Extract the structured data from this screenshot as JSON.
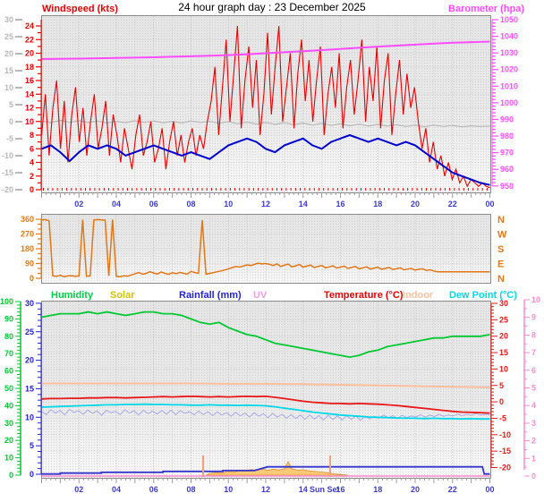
{
  "title": "24 hour graph day : 23 December 2025",
  "top_left_label": "Windspeed (kts)",
  "top_right_label": "Barometer (hpa)",
  "legend": [
    {
      "label": "Humidity",
      "color": "#00cc44"
    },
    {
      "label": "Solar",
      "color": "#d2c400"
    },
    {
      "label": "Rainfall (mm)",
      "color": "#2222dd"
    },
    {
      "label": "UV",
      "color": "#ee99ee"
    },
    {
      "label": "Temperature (°C)",
      "color": "#e80000"
    },
    {
      "label": "Indoor",
      "color": "#f8c0a0"
    },
    {
      "label": "Dew Point (°C)",
      "color": "#00d8e8"
    }
  ],
  "x_axis": {
    "hour_labels": [
      "02",
      "04",
      "06",
      "08",
      "10",
      "12",
      "14",
      "16",
      "18",
      "20",
      "22",
      "00"
    ],
    "sun_label": "Sun Set"
  },
  "chart_data": [
    {
      "id": "wind-barometer",
      "type": "line",
      "title_left": "Windspeed (kts)",
      "title_right": "Barometer (hpa)",
      "axes": {
        "gray_left": {
          "range": [
            -20,
            30
          ],
          "ticks": [
            30,
            25,
            20,
            15,
            10,
            5,
            0,
            -5,
            -10,
            -15,
            -20
          ],
          "color": "#b8b8b8"
        },
        "red_left": {
          "range": [
            0,
            24
          ],
          "ticks": [
            24,
            22,
            20,
            18,
            16,
            14,
            12,
            10,
            8,
            6,
            4,
            2,
            0
          ],
          "color": "#e80000"
        },
        "magenta_right": {
          "range": [
            950,
            1050
          ],
          "ticks": [
            1050,
            1040,
            1030,
            1020,
            1010,
            1000,
            990,
            980,
            970,
            960,
            950
          ],
          "color": "#ff4cff"
        }
      },
      "series": [
        {
          "name": "wind_gust_kts",
          "color": "#e80000",
          "axis": "red_left",
          "values": [
            8,
            14,
            5,
            12,
            16,
            6,
            13,
            4,
            11,
            15,
            7,
            12,
            5,
            10,
            14,
            6,
            9,
            13,
            5,
            11,
            8,
            4,
            9,
            6,
            3,
            8,
            11,
            5,
            7,
            10,
            4,
            6,
            9,
            3,
            7,
            10,
            5,
            8,
            4,
            7,
            9,
            5,
            8,
            6,
            10,
            13,
            18,
            8,
            15,
            22,
            10,
            17,
            24,
            9,
            16,
            21,
            12,
            19,
            8,
            14,
            23,
            11,
            18,
            24,
            10,
            15,
            20,
            9,
            17,
            22,
            13,
            19,
            10,
            16,
            21,
            8,
            14,
            18,
            12,
            20,
            9,
            15,
            19,
            11,
            16,
            22,
            10,
            18,
            13,
            21,
            9,
            16,
            20,
            8,
            14,
            19,
            11,
            17,
            12,
            15,
            10,
            6,
            9,
            4,
            7,
            3,
            5,
            2,
            4,
            1.5,
            3,
            1,
            2,
            0.5,
            1.5,
            1,
            0.5,
            1,
            0.5,
            0.3
          ]
        },
        {
          "name": "wind_average_kts",
          "color": "#0000cc",
          "axis": "red_left",
          "values": [
            6,
            6.5,
            5.5,
            4.2,
            5.5,
            6.5,
            6,
            6.5,
            6,
            5,
            5.5,
            6,
            6.5,
            6,
            5.5,
            5,
            5.5,
            5,
            4.5,
            5.5,
            6.5,
            7,
            7.5,
            7,
            6,
            5.5,
            6.5,
            7,
            7.5,
            6.5,
            6,
            7,
            7.5,
            8,
            7.5,
            7,
            7.5,
            7,
            6.5,
            7,
            6.5,
            5.5,
            4.5,
            3.5,
            2.5,
            2,
            1.5,
            1,
            0.7
          ]
        },
        {
          "name": "gray_temperature_c",
          "color": "#b8b8b8",
          "axis": "gray_left",
          "values": [
            0.2,
            -0.3,
            0.4,
            -0.2,
            0.3,
            -0.3,
            0.2,
            -0.4,
            0.1,
            -0.3,
            0.3,
            -0.2,
            0.2,
            -0.3,
            0.1,
            -0.4,
            0.2,
            -0.2,
            0.1,
            -0.5,
            0,
            -0.6,
            -0.1,
            -0.7,
            -0.2,
            -0.8,
            -0.3,
            -0.9,
            -0.4,
            -1.0,
            -0.5,
            -1.1,
            -0.6,
            -1.2,
            -0.7,
            -1.3,
            -0.8,
            -1.3,
            -0.9,
            -1.4,
            -1.0,
            -1.5,
            -1.0,
            -1.4,
            -1.1,
            -1.5,
            -1.2,
            -1.4,
            -1.3
          ]
        },
        {
          "name": "barometer_hpa",
          "color": "#ff4cff",
          "axis": "magenta_right",
          "values": [
            1026.3,
            1026.5,
            1026.6,
            1026.8,
            1027.0,
            1027.2,
            1027.4,
            1027.7,
            1028.0,
            1028.3,
            1028.7,
            1029.2,
            1029.8,
            1030.4,
            1031.0,
            1031.7,
            1032.4,
            1033.1,
            1033.8,
            1034.4,
            1035.0,
            1035.6,
            1036.1,
            1036.5,
            1036.8
          ]
        }
      ]
    },
    {
      "id": "wind-direction",
      "type": "line",
      "axes": {
        "orange_left": {
          "range": [
            0,
            360
          ],
          "ticks": [
            360,
            270,
            180,
            90,
            0
          ],
          "color": "#e07818"
        },
        "compass_right": {
          "labels": [
            "N",
            "W",
            "S",
            "E",
            "N"
          ],
          "color": "#e07818"
        }
      },
      "series": [
        {
          "name": "wind_direction_deg",
          "color": "#e07818",
          "values": [
            355,
            358,
            350,
            15,
            12,
            18,
            10,
            14,
            16,
            12,
            15,
            358,
            12,
            15,
            355,
            358,
            356,
            354,
            15,
            358,
            12,
            10,
            15,
            13,
            20,
            28,
            35,
            25,
            30,
            40,
            32,
            26,
            38,
            30,
            24,
            34,
            28,
            36,
            30,
            26,
            42,
            35,
            30,
            355,
            25,
            30,
            35,
            40,
            45,
            50,
            58,
            65,
            72,
            68,
            75,
            82,
            78,
            85,
            92,
            88,
            90,
            85,
            78,
            88,
            72,
            80,
            86,
            70,
            76,
            84,
            68,
            74,
            80,
            66,
            72,
            78,
            64,
            70,
            76,
            62,
            68,
            74,
            60,
            66,
            72,
            58,
            64,
            70,
            56,
            62,
            68,
            55,
            60,
            66,
            54,
            58,
            64,
            52,
            56,
            60,
            50,
            55,
            58,
            48,
            52,
            45,
            40,
            40,
            40,
            40,
            40,
            40,
            40,
            40,
            40,
            40,
            40,
            40,
            40,
            40,
            40
          ]
        }
      ]
    },
    {
      "id": "temp-humidity-rain",
      "type": "line",
      "axes": {
        "green_left": {
          "range": [
            0,
            100
          ],
          "ticks": [
            100,
            90,
            80,
            70,
            60,
            50,
            40,
            30,
            20,
            10,
            0
          ],
          "color": "#00c832"
        },
        "blue_left": {
          "range": [
            0,
            30
          ],
          "ticks": [
            30,
            25,
            20,
            15,
            10,
            5,
            0
          ],
          "color": "#2222cc"
        },
        "red_right": {
          "range": [
            -20,
            30
          ],
          "ticks": [
            30,
            25,
            20,
            15,
            10,
            5,
            0,
            -5,
            -10,
            -15,
            -20
          ],
          "color": "#e81818"
        },
        "pink_right": {
          "range": [
            0,
            10
          ],
          "ticks": [
            10,
            9,
            8,
            7,
            6,
            5,
            4,
            3,
            2,
            1,
            0
          ],
          "color": "#ff8ad2"
        }
      },
      "series": [
        {
          "name": "indoor_temperature_c",
          "color": "#ffbf9e",
          "axis": "red_right",
          "values": [
            5.6,
            5.6,
            5.6,
            5.6,
            5.6,
            5.5,
            5.5,
            5.4,
            5.2,
            5.0,
            4.8,
            4.6,
            4.4
          ]
        },
        {
          "name": "wind_chill_c",
          "color": "#a9a9e8",
          "axis": "red_right",
          "values": [
            -2.8,
            -3.9,
            -2.4,
            -3.4,
            -2.6,
            -4.0,
            -2.3,
            -3.2,
            -2.7,
            -3.8,
            -2.5,
            -3.5,
            -2.8,
            -4.1,
            -2.6,
            -3.3,
            -2.9,
            -3.9,
            -2.4,
            -3.4,
            -2.7,
            -4.0,
            -2.5,
            -3.6,
            -2.8,
            -3.7,
            -2.6,
            -3.8,
            -2.5,
            -3.9,
            -2.7,
            -3.5,
            -3.0,
            -4.0,
            -2.8,
            -3.9,
            -3.0,
            -4.2,
            -3.1,
            -4.0,
            -3.3,
            -4.4,
            -3.2,
            -4.3,
            -3.4,
            -4.6,
            -3.3,
            -4.4,
            -3.6,
            -4.8,
            -3.5,
            -4.7,
            -3.8,
            -5.0,
            -3.9,
            -5.1,
            -4.0,
            -5.3,
            -4.0,
            -5.2,
            -4.2,
            -5.5,
            -4.1,
            -5.4,
            -4.3,
            -5.5,
            -4.2,
            -5.3,
            -4.3,
            -5.6,
            -4.4,
            -5.2,
            -4.5,
            -5.0,
            -4.0,
            -4.9,
            -4.2,
            -5.1,
            -4.1,
            -4.8,
            -4.3,
            -4.6,
            -3.9,
            -4.7,
            -4.0,
            -4.5,
            -3.8,
            -4.4,
            -4.0,
            -4.3,
            -3.7,
            -4.2,
            -3.8,
            -4.1,
            -3.6,
            -4.0,
            -3.8,
            -3.9
          ]
        },
        {
          "name": "humidity_pct",
          "color": "#00c832",
          "axis": "green_left",
          "values": [
            91,
            92,
            93,
            93,
            93,
            94,
            93,
            94,
            93,
            92,
            93,
            94,
            94,
            93,
            93,
            92,
            90,
            88,
            87,
            88,
            85,
            83,
            81,
            80,
            78,
            76,
            75,
            74,
            73,
            72,
            71,
            70,
            69,
            68,
            69,
            71,
            72,
            74,
            75,
            76,
            77,
            78,
            79,
            79,
            80,
            80,
            80,
            80,
            81
          ]
        },
        {
          "name": "temperature_c",
          "color": "#e81818",
          "axis": "red_right",
          "values": [
            0.9,
            1.0,
            1.0,
            1.1,
            1.1,
            1.2,
            1.2,
            1.3,
            1.3,
            1.2,
            1.3,
            1.4,
            1.5,
            1.6,
            1.5,
            1.6,
            1.7,
            1.6,
            1.5,
            1.6,
            1.5,
            1.6,
            1.7,
            1.6,
            1.7,
            1.4,
            1.0,
            0.6,
            0.2,
            -0.1,
            -0.3,
            -0.5,
            -0.5,
            -0.6,
            -0.5,
            -0.6,
            -0.7,
            -0.9,
            -1.1,
            -1.4,
            -1.7,
            -2.0,
            -2.3,
            -2.6,
            -2.9,
            -3.1,
            -3.2,
            -3.3,
            -3.4
          ]
        },
        {
          "name": "dew_point_c",
          "color": "#00d8e8",
          "axis": "red_right",
          "values": [
            -1.6,
            -1.5,
            -1.4,
            -1.3,
            -1.2,
            -1.1,
            -1.0,
            -0.9,
            -0.9,
            -0.8,
            -0.8,
            -0.7,
            -0.8,
            -0.8,
            -0.9,
            -0.9,
            -1.0,
            -1.0,
            -0.9,
            -1.0,
            -1.0,
            -1.1,
            -1.0,
            -1.1,
            -1.2,
            -1.5,
            -1.9,
            -2.3,
            -2.7,
            -3.1,
            -3.4,
            -3.7,
            -4.0,
            -4.2,
            -4.4,
            -4.6,
            -4.7,
            -4.8,
            -4.9,
            -5.0,
            -5.0,
            -5.1,
            -5.0,
            -5.1,
            -5.1,
            -5.2,
            -5.1,
            -5.2,
            -5.2
          ]
        },
        {
          "name": "solar",
          "color": "#e09030",
          "fill": "#f9c978",
          "points": [
            [
              8.8,
              0
            ],
            [
              9.0,
              15
            ],
            [
              9.3,
              25
            ],
            [
              9.6,
              20
            ],
            [
              10,
              35
            ],
            [
              10.3,
              28
            ],
            [
              10.6,
              45
            ],
            [
              10.9,
              38
            ],
            [
              11.2,
              55
            ],
            [
              11.5,
              48
            ],
            [
              11.8,
              60
            ],
            [
              12.1,
              46
            ],
            [
              12.4,
              58
            ],
            [
              12.7,
              50
            ],
            [
              13.0,
              62
            ],
            [
              13.2,
              130
            ],
            [
              13.4,
              62
            ],
            [
              13.7,
              48
            ],
            [
              14.0,
              52
            ],
            [
              14.3,
              42
            ],
            [
              14.7,
              36
            ],
            [
              15.0,
              30
            ],
            [
              15.3,
              24
            ],
            [
              15.6,
              14
            ],
            [
              16.0,
              7
            ],
            [
              16.4,
              0
            ]
          ]
        },
        {
          "name": "rainfall_mm",
          "color": "#3535cc",
          "axis": "blue_left",
          "points": [
            [
              0,
              0.05
            ],
            [
              1,
              0.05
            ],
            [
              1,
              0.2
            ],
            [
              3.2,
              0.2
            ],
            [
              3.2,
              0.35
            ],
            [
              6.5,
              0.35
            ],
            [
              6.5,
              0.5
            ],
            [
              9.7,
              0.5
            ],
            [
              9.7,
              0.65
            ],
            [
              11.4,
              0.65
            ],
            [
              12.1,
              1.3
            ],
            [
              23.6,
              1.3
            ],
            [
              23.7,
              0.05
            ],
            [
              24,
              0.05
            ]
          ]
        },
        {
          "name": "uv_index",
          "color": "#ff8ad2",
          "axis": "pink_right",
          "points": [
            [
              0,
              0
            ],
            [
              24,
              0
            ]
          ]
        }
      ],
      "event_markers": [
        {
          "name": "sun_rise_marker",
          "hour": 8.65,
          "color": "#f0a080"
        },
        {
          "name": "sun_set_marker",
          "hour": 15.45,
          "label": "Sun Set",
          "color": "#f0a080"
        }
      ]
    }
  ]
}
